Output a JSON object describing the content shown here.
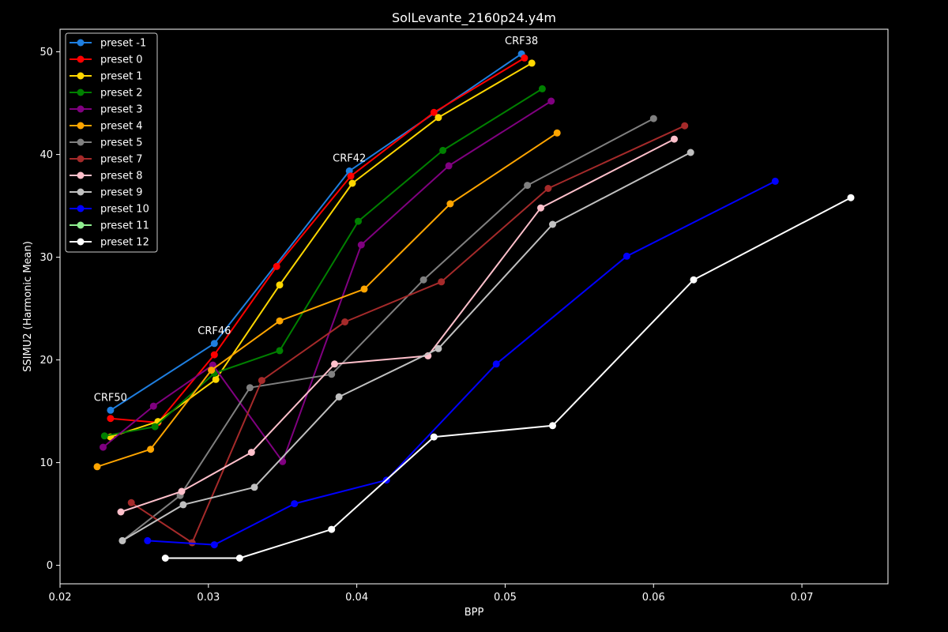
{
  "chart_data": {
    "type": "line",
    "title": "SolLevante_2160p24.y4m",
    "xlabel": "BPP",
    "ylabel": "SSIMU2 (Harmonic Mean)",
    "xlim": [
      0.02,
      0.0758
    ],
    "ylim": [
      -1.8,
      52.2
    ],
    "xticks": [
      0.02,
      0.03,
      0.04,
      0.05,
      0.06,
      0.07
    ],
    "xtick_labels": [
      "0.02",
      "0.03",
      "0.04",
      "0.05",
      "0.06",
      "0.07"
    ],
    "yticks": [
      0,
      10,
      20,
      30,
      40,
      50
    ],
    "ytick_labels": [
      "0",
      "10",
      "20",
      "30",
      "40",
      "50"
    ],
    "grid": false,
    "legend_position": "top-left",
    "background": "#000000",
    "foreground": "#ffffff",
    "annotations": [
      {
        "text": "CRF50",
        "x": 0.0234,
        "y": 15.1
      },
      {
        "text": "CRF46",
        "x": 0.0304,
        "y": 21.6
      },
      {
        "text": "CRF42",
        "x": 0.0395,
        "y": 38.4
      },
      {
        "text": "CRF38",
        "x": 0.0511,
        "y": 49.8
      }
    ],
    "series": [
      {
        "name": "preset -1",
        "color": "#1f7fe0",
        "points": [
          [
            0.0234,
            15.1
          ],
          [
            0.0304,
            21.6
          ],
          [
            0.0395,
            38.4
          ],
          [
            0.0511,
            49.8
          ]
        ]
      },
      {
        "name": "preset 0",
        "color": "#ff0000",
        "points": [
          [
            0.0234,
            14.3
          ],
          [
            0.0266,
            13.9
          ],
          [
            0.0304,
            20.5
          ],
          [
            0.0346,
            29.1
          ],
          [
            0.0396,
            37.9
          ],
          [
            0.0452,
            44.1
          ],
          [
            0.0513,
            49.4
          ]
        ]
      },
      {
        "name": "preset 1",
        "color": "#ffd700",
        "points": [
          [
            0.0234,
            12.5
          ],
          [
            0.0266,
            14.0
          ],
          [
            0.0305,
            18.1
          ],
          [
            0.0348,
            27.3
          ],
          [
            0.0397,
            37.2
          ],
          [
            0.0455,
            43.6
          ],
          [
            0.0518,
            48.9
          ]
        ]
      },
      {
        "name": "preset 2",
        "color": "#008000",
        "points": [
          [
            0.023,
            12.6
          ],
          [
            0.0264,
            13.5
          ],
          [
            0.0304,
            18.7
          ],
          [
            0.0348,
            20.9
          ],
          [
            0.0401,
            33.5
          ],
          [
            0.0458,
            40.4
          ],
          [
            0.0525,
            46.4
          ]
        ]
      },
      {
        "name": "preset 3",
        "color": "#800080",
        "points": [
          [
            0.0229,
            11.5
          ],
          [
            0.0263,
            15.5
          ],
          [
            0.0303,
            19.5
          ],
          [
            0.035,
            10.1
          ],
          [
            0.0403,
            31.2
          ],
          [
            0.0462,
            38.9
          ],
          [
            0.0531,
            45.2
          ]
        ]
      },
      {
        "name": "preset 4",
        "color": "#ffa500",
        "points": [
          [
            0.0225,
            9.6
          ],
          [
            0.0261,
            11.3
          ],
          [
            0.0302,
            19.0
          ],
          [
            0.0348,
            23.8
          ],
          [
            0.0405,
            26.9
          ],
          [
            0.0463,
            35.2
          ],
          [
            0.0535,
            42.1
          ]
        ]
      },
      {
        "name": "preset 5",
        "color": "#808080",
        "points": [
          [
            0.0242,
            2.4
          ],
          [
            0.0281,
            6.8
          ],
          [
            0.0328,
            17.3
          ],
          [
            0.0383,
            18.6
          ],
          [
            0.0445,
            27.8
          ],
          [
            0.0515,
            37.0
          ],
          [
            0.06,
            43.5
          ]
        ]
      },
      {
        "name": "preset 7",
        "color": "#a52a2a",
        "points": [
          [
            0.0248,
            6.1
          ],
          [
            0.0289,
            2.2
          ],
          [
            0.0336,
            18.0
          ],
          [
            0.0392,
            23.7
          ],
          [
            0.0457,
            27.6
          ],
          [
            0.0529,
            36.7
          ],
          [
            0.0621,
            42.8
          ]
        ]
      },
      {
        "name": "preset 8",
        "color": "#ffc0cb",
        "points": [
          [
            0.0241,
            5.2
          ],
          [
            0.0282,
            7.2
          ],
          [
            0.0329,
            11.0
          ],
          [
            0.0385,
            19.6
          ],
          [
            0.0448,
            20.4
          ],
          [
            0.0524,
            34.8
          ],
          [
            0.0614,
            41.5
          ]
        ]
      },
      {
        "name": "preset 9",
        "color": "#c0c0c0",
        "points": [
          [
            0.0242,
            2.4
          ],
          [
            0.0283,
            5.9
          ],
          [
            0.0331,
            7.6
          ],
          [
            0.0388,
            16.4
          ],
          [
            0.0455,
            21.1
          ],
          [
            0.0532,
            33.2
          ],
          [
            0.0625,
            40.2
          ]
        ]
      },
      {
        "name": "preset 10",
        "color": "#0000ff",
        "points": [
          [
            0.0259,
            2.4
          ],
          [
            0.0304,
            2.0
          ],
          [
            0.0358,
            6.0
          ],
          [
            0.042,
            8.3
          ],
          [
            0.0494,
            19.6
          ],
          [
            0.0582,
            30.1
          ],
          [
            0.0682,
            37.4
          ]
        ]
      },
      {
        "name": "preset 11",
        "color": "#90ee90",
        "points": []
      },
      {
        "name": "preset 12",
        "color": "#ffffff",
        "points": [
          [
            0.0271,
            0.7
          ],
          [
            0.0321,
            0.7
          ],
          [
            0.0383,
            3.5
          ],
          [
            0.0452,
            12.5
          ],
          [
            0.0532,
            13.6
          ],
          [
            0.0627,
            27.8
          ],
          [
            0.0733,
            35.8
          ]
        ]
      }
    ]
  }
}
